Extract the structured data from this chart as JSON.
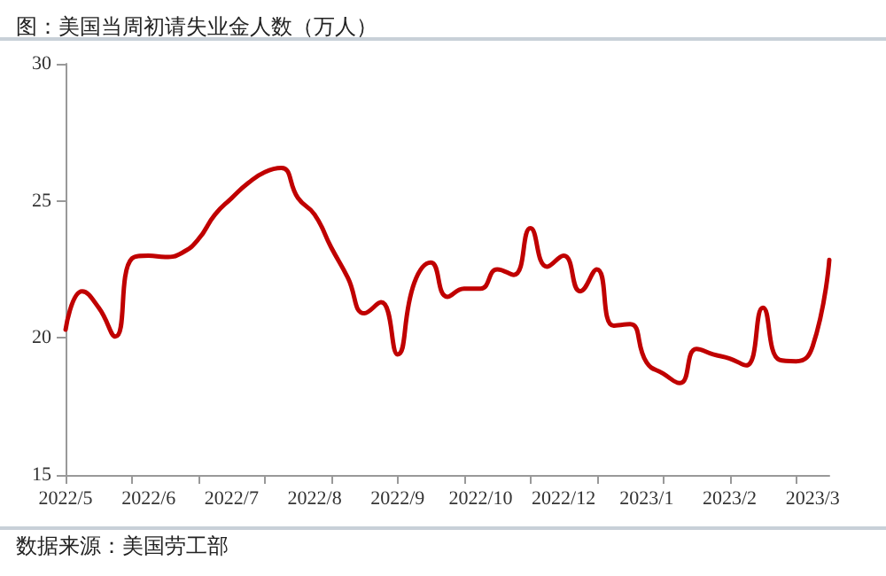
{
  "chart_data": {
    "type": "line",
    "title": "图：美国当周初请失业金人数（万人）",
    "annotations": [
      "数据来源：美国劳工部"
    ],
    "categories": [
      "2022/5",
      null,
      null,
      null,
      null,
      "2022/6",
      null,
      null,
      null,
      null,
      "2022/7",
      null,
      null,
      null,
      null,
      "2022/8",
      null,
      null,
      null,
      null,
      "2022/9",
      null,
      null,
      null,
      null,
      "2022/10",
      null,
      null,
      null,
      null,
      "2022/12",
      null,
      null,
      null,
      null,
      "2023/1",
      null,
      null,
      null,
      null,
      "2023/2",
      null,
      null,
      null,
      null,
      "2023/3",
      null
    ],
    "series": [
      {
        "color": "#c00000",
        "values": [
          20.3,
          21.7,
          21.1,
          20.05,
          22.9,
          23.0,
          22.95,
          23.1,
          23.6,
          24.5,
          25.1,
          25.65,
          26.05,
          26.2,
          25.1,
          24.5,
          23.3,
          22.2,
          20.9,
          21.3,
          19.4,
          22.0,
          22.75,
          21.5,
          21.8,
          21.8,
          22.5,
          22.3,
          24.0,
          22.6,
          23.0,
          21.7,
          22.5,
          20.45,
          20.5,
          19.1,
          18.7,
          18.35,
          19.6,
          19.4,
          19.25,
          19.0,
          21.1,
          19.2,
          19.15,
          19.7,
          22.85
        ]
      }
    ],
    "ylim": [
      15,
      30
    ],
    "yticks": [
      15,
      20,
      25,
      30
    ],
    "grid": false,
    "marker": "none",
    "line_style": "solid"
  }
}
